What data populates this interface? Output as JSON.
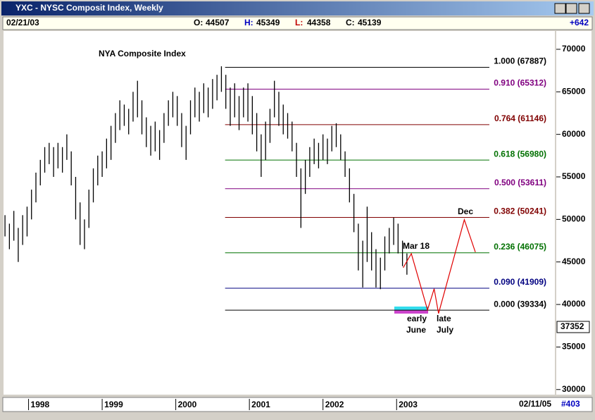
{
  "window": {
    "title": "YXC - NYSC Composit Index, Weekly",
    "date": "02/21/03",
    "ohlc": [
      {
        "label": "O:",
        "value": 44507
      },
      {
        "label": "H:",
        "value": 45349
      },
      {
        "label": "L:",
        "value": 44358
      },
      {
        "label": "C:",
        "value": 45139
      }
    ],
    "change": "+642",
    "end_date": "02/11/05",
    "count": "#403"
  },
  "chart_data": {
    "type": "ohlc",
    "title": "NYA Composite Index",
    "color": "#000000",
    "x": [
      1997.68,
      1997.74,
      1997.8,
      1997.86,
      1997.92,
      1997.98,
      1998.04,
      1998.1,
      1998.16,
      1998.22,
      1998.28,
      1998.34,
      1998.4,
      1998.46,
      1998.52,
      1998.58,
      1998.64,
      1998.7,
      1998.76,
      1998.82,
      1998.88,
      1998.94,
      1999.0,
      1999.06,
      1999.12,
      1999.18,
      1999.24,
      1999.3,
      1999.36,
      1999.42,
      1999.48,
      1999.54,
      1999.6,
      1999.66,
      1999.72,
      1999.78,
      1999.84,
      1999.9,
      1999.96,
      2000.02,
      2000.08,
      2000.14,
      2000.2,
      2000.26,
      2000.32,
      2000.38,
      2000.44,
      2000.5,
      2000.56,
      2000.62,
      2000.68,
      2000.74,
      2000.8,
      2000.86,
      2000.92,
      2000.98,
      2001.04,
      2001.1,
      2001.16,
      2001.22,
      2001.28,
      2001.34,
      2001.4,
      2001.46,
      2001.52,
      2001.58,
      2001.64,
      2001.7,
      2001.76,
      2001.82,
      2001.88,
      2001.94,
      2002.0,
      2002.06,
      2002.12,
      2002.18,
      2002.24,
      2002.3,
      2002.36,
      2002.42,
      2002.48,
      2002.54,
      2002.6,
      2002.66,
      2002.72,
      2002.78,
      2002.84,
      2002.9,
      2002.96,
      2003.02,
      2003.08,
      2003.14
    ],
    "low": [
      48000,
      46500,
      47500,
      45000,
      47000,
      48000,
      50000,
      52000,
      54000,
      55500,
      56500,
      55000,
      56000,
      55500,
      57000,
      54000,
      50000,
      47000,
      46500,
      49000,
      52000,
      54000,
      55000,
      56000,
      57000,
      59000,
      60500,
      61000,
      60000,
      61500,
      62000,
      60000,
      58500,
      57500,
      58000,
      57000,
      59000,
      61000,
      62000,
      61000,
      58500,
      57000,
      60000,
      62000,
      61500,
      62500,
      62000,
      63000,
      64000,
      65000,
      63000,
      61000,
      62000,
      60500,
      62000,
      61500,
      60000,
      58000,
      55000,
      57000,
      59000,
      62000,
      61000,
      60000,
      59500,
      58000,
      55000,
      49000,
      53000,
      55000,
      56500,
      56000,
      57000,
      56500,
      58000,
      58500,
      57000,
      55000,
      52000,
      48500,
      44000,
      42000,
      45000,
      44000,
      42000,
      41800,
      44000,
      46000,
      47000,
      46000,
      44500,
      43500
    ],
    "high": [
      50500,
      49500,
      51000,
      49000,
      50500,
      51500,
      53500,
      55500,
      57000,
      58500,
      59000,
      58500,
      59000,
      58500,
      60000,
      58000,
      55000,
      52000,
      50000,
      53500,
      56000,
      57500,
      58000,
      59500,
      61000,
      62500,
      64000,
      63500,
      63000,
      65000,
      66300,
      64000,
      62000,
      61000,
      61500,
      60500,
      62500,
      64000,
      65000,
      64500,
      62500,
      61000,
      64000,
      65500,
      65000,
      66000,
      65500,
      66500,
      67000,
      68000,
      67000,
      65500,
      66000,
      64500,
      65500,
      66000,
      64500,
      62500,
      60000,
      61500,
      63000,
      66300,
      65000,
      63500,
      62500,
      61500,
      59000,
      56000,
      57000,
      58500,
      59500,
      59000,
      60000,
      59500,
      61000,
      61300,
      60000,
      58000,
      56000,
      53000,
      49500,
      47500,
      51500,
      48500,
      46500,
      45500,
      48000,
      49000,
      50200,
      49500,
      47500,
      46000
    ],
    "xlim": [
      1997.66,
      2005.15
    ],
    "xticks": [
      1998,
      1999,
      2000,
      2001,
      2002,
      2003
    ],
    "ylim": [
      29400,
      72150
    ],
    "yticks": [
      30000,
      35000,
      40000,
      45000,
      50000,
      55000,
      60000,
      65000,
      70000
    ],
    "last_value": 37352,
    "fib_x": [
      2000.67,
      2004.26
    ],
    "fib_levels": [
      {
        "value": 67887,
        "label": "1.000 (67887)",
        "color": "#000000"
      },
      {
        "value": 65312,
        "label": "0.910 (65312)",
        "color": "#800080"
      },
      {
        "value": 61146,
        "label": "0.764 (61146)",
        "color": "#800000"
      },
      {
        "value": 56980,
        "label": "0.618 (56980)",
        "color": "#007000"
      },
      {
        "value": 53611,
        "label": "0.500 (53611)",
        "color": "#800080"
      },
      {
        "value": 50241,
        "label": "0.382 (50241)",
        "color": "#800000"
      },
      {
        "value": 46075,
        "label": "0.236 (46075)",
        "color": "#007000"
      },
      {
        "value": 41909,
        "label": "0.090 (41909)",
        "color": "#000080"
      },
      {
        "value": 39334,
        "label": "0.000 (39334)",
        "color": "#000000"
      }
    ],
    "projection": {
      "color": "#e00000",
      "x": [
        2003.09,
        2003.2,
        2003.42,
        2003.51,
        2003.57,
        2003.92,
        2004.07
      ],
      "values": [
        44327,
        45983,
        39358,
        41843,
        38944,
        49959,
        46149
      ]
    },
    "annotations": [
      "Mar 18",
      "Dec",
      "early",
      "June",
      "late",
      "July"
    ]
  }
}
